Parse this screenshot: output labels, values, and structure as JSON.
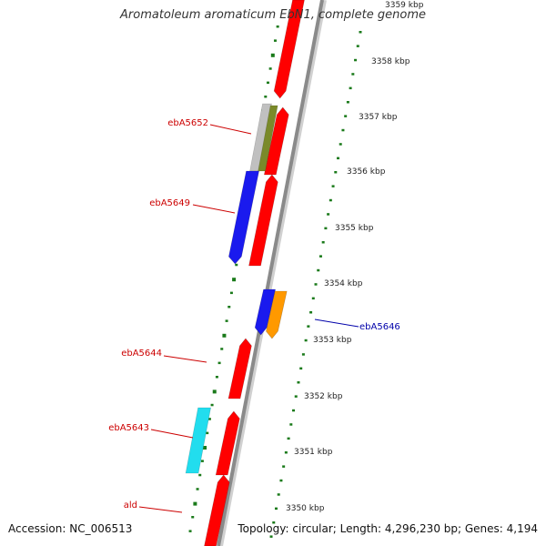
{
  "title": "Aromatoleum aromaticum EbN1, complete genome",
  "footer": {
    "accession": "Accession: NC_006513",
    "topology": "Topology: circular; Length: 4,296,230 bp; Genes: 4,194"
  },
  "colors": {
    "forward_gene": "#ff0000",
    "reverse_gene": "#ff0000",
    "backbone": "#8a8a8a",
    "ticks": "#1a7a1a",
    "label_red": "#cc0000",
    "label_blue": "#0000aa"
  },
  "scale": {
    "labels": [
      "3350 kbp",
      "3351 kbp",
      "3352 kbp",
      "3353 kbp",
      "3354 kbp",
      "3355 kbp",
      "3356 kbp",
      "3357 kbp",
      "3358 kbp",
      "3359 kbp"
    ]
  },
  "genes": [
    {
      "label": "ebA5652",
      "color": "#cc0000"
    },
    {
      "label": "ebA5649",
      "color": "#cc0000"
    },
    {
      "label": "ebA5646",
      "color": "#0000aa"
    },
    {
      "label": "ebA5644",
      "color": "#cc0000"
    },
    {
      "label": "ebA5643",
      "color": "#cc0000"
    },
    {
      "label": "ald",
      "color": "#cc0000"
    }
  ]
}
